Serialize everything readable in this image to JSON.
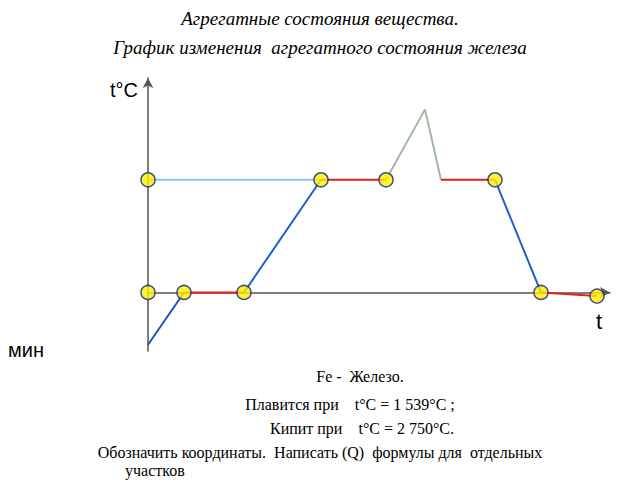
{
  "chart_data": {
    "type": "line",
    "title": "Агрегатные состояния вещества.",
    "subtitle": "График изменения  агрегатного состояния железа",
    "x_label": "t",
    "y_label": "t°C",
    "annotations": [
      "мин"
    ],
    "notes": [
      "Fe -  Железо.",
      "Плавится при    t°C = 1 539°C ;",
      "Кипит при    t°C = 2 750°C.",
      "Обозначить координаты.  Написать (Q)  формулы для  отдельных",
      "участков"
    ],
    "xlim": [
      0,
      46.2
    ],
    "ylim": [
      -800,
      2930
    ],
    "tick_labels": false,
    "grid": false,
    "series": [
      {
        "color": "#80c8f0",
        "line_style": "solid",
        "x": [
          0,
          17.3
        ],
        "values": [
          1539,
          1539
        ]
      },
      {
        "color": "#1f4fc0",
        "x": [
          0,
          3.6
        ],
        "values": [
          -715,
          0
        ]
      },
      {
        "color": "#e02020",
        "x": [
          3.6,
          9.6
        ],
        "values": [
          0,
          0
        ]
      },
      {
        "color": "#1f5fc8",
        "x": [
          9.6,
          17.3
        ],
        "values": [
          0,
          1539
        ]
      },
      {
        "color": "#e02020",
        "x": [
          17.3,
          23.8
        ],
        "values": [
          1539,
          1539
        ]
      },
      {
        "color": "#a3b8a3",
        "x": [
          23.8,
          27.7,
          29.3
        ],
        "values": [
          1539,
          2500,
          1539
        ]
      },
      {
        "color": "#e02020",
        "x": [
          29.3,
          34.7
        ],
        "values": [
          1539,
          1539
        ]
      },
      {
        "color": "#1f5fc8",
        "x": [
          34.7,
          39.3
        ],
        "values": [
          1539,
          0
        ]
      },
      {
        "color": "#e02020",
        "x": [
          39.3,
          44.9
        ],
        "values": [
          0,
          -50
        ]
      },
      {
        "type": "scatter",
        "marker": "circle",
        "color": "#ffee00",
        "x": [
          0,
          0,
          3.6,
          9.6,
          17.3,
          23.8,
          34.7,
          39.3,
          44.9
        ],
        "values": [
          1539,
          0,
          0,
          0,
          1539,
          1539,
          1539,
          0,
          -50
        ]
      }
    ]
  }
}
